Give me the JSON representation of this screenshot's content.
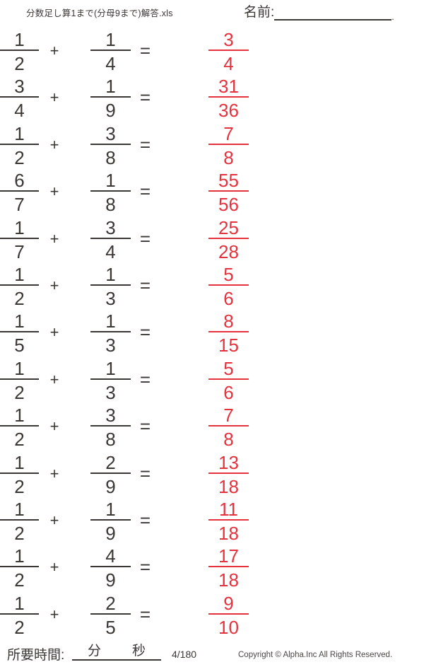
{
  "header": {
    "title": "分数足し算1まで(分母9まで)解答.xls",
    "name_label": "名前:",
    "name_suffix": "."
  },
  "problems": [
    {
      "a_num": "1",
      "a_den": "2",
      "op": "+",
      "b_num": "1",
      "b_den": "4",
      "eq": "=",
      "ans_num": "3",
      "ans_den": "4"
    },
    {
      "a_num": "3",
      "a_den": "4",
      "op": "+",
      "b_num": "1",
      "b_den": "9",
      "eq": "=",
      "ans_num": "31",
      "ans_den": "36"
    },
    {
      "a_num": "1",
      "a_den": "2",
      "op": "+",
      "b_num": "3",
      "b_den": "8",
      "eq": "=",
      "ans_num": "7",
      "ans_den": "8"
    },
    {
      "a_num": "6",
      "a_den": "7",
      "op": "+",
      "b_num": "1",
      "b_den": "8",
      "eq": "=",
      "ans_num": "55",
      "ans_den": "56"
    },
    {
      "a_num": "1",
      "a_den": "7",
      "op": "+",
      "b_num": "3",
      "b_den": "4",
      "eq": "=",
      "ans_num": "25",
      "ans_den": "28"
    },
    {
      "a_num": "1",
      "a_den": "2",
      "op": "+",
      "b_num": "1",
      "b_den": "3",
      "eq": "=",
      "ans_num": "5",
      "ans_den": "6"
    },
    {
      "a_num": "1",
      "a_den": "5",
      "op": "+",
      "b_num": "1",
      "b_den": "3",
      "eq": "=",
      "ans_num": "8",
      "ans_den": "15"
    },
    {
      "a_num": "1",
      "a_den": "2",
      "op": "+",
      "b_num": "1",
      "b_den": "3",
      "eq": "=",
      "ans_num": "5",
      "ans_den": "6"
    },
    {
      "a_num": "1",
      "a_den": "2",
      "op": "+",
      "b_num": "3",
      "b_den": "8",
      "eq": "=",
      "ans_num": "7",
      "ans_den": "8"
    },
    {
      "a_num": "1",
      "a_den": "2",
      "op": "+",
      "b_num": "2",
      "b_den": "9",
      "eq": "=",
      "ans_num": "13",
      "ans_den": "18"
    },
    {
      "a_num": "1",
      "a_den": "2",
      "op": "+",
      "b_num": "1",
      "b_den": "9",
      "eq": "=",
      "ans_num": "11",
      "ans_den": "18"
    },
    {
      "a_num": "1",
      "a_den": "2",
      "op": "+",
      "b_num": "4",
      "b_den": "9",
      "eq": "=",
      "ans_num": "17",
      "ans_den": "18"
    },
    {
      "a_num": "1",
      "a_den": "2",
      "op": "+",
      "b_num": "2",
      "b_den": "5",
      "eq": "=",
      "ans_num": "9",
      "ans_den": "10"
    }
  ],
  "footer": {
    "time_label": "所要時間:",
    "minutes_label": "分",
    "seconds_label": "秒",
    "page": "4/180",
    "copyright": "Copyright ©  Alpha.Inc All Rights Reserved."
  },
  "colors": {
    "answer_red": "#e5323e",
    "text_dark": "#3b3735"
  }
}
